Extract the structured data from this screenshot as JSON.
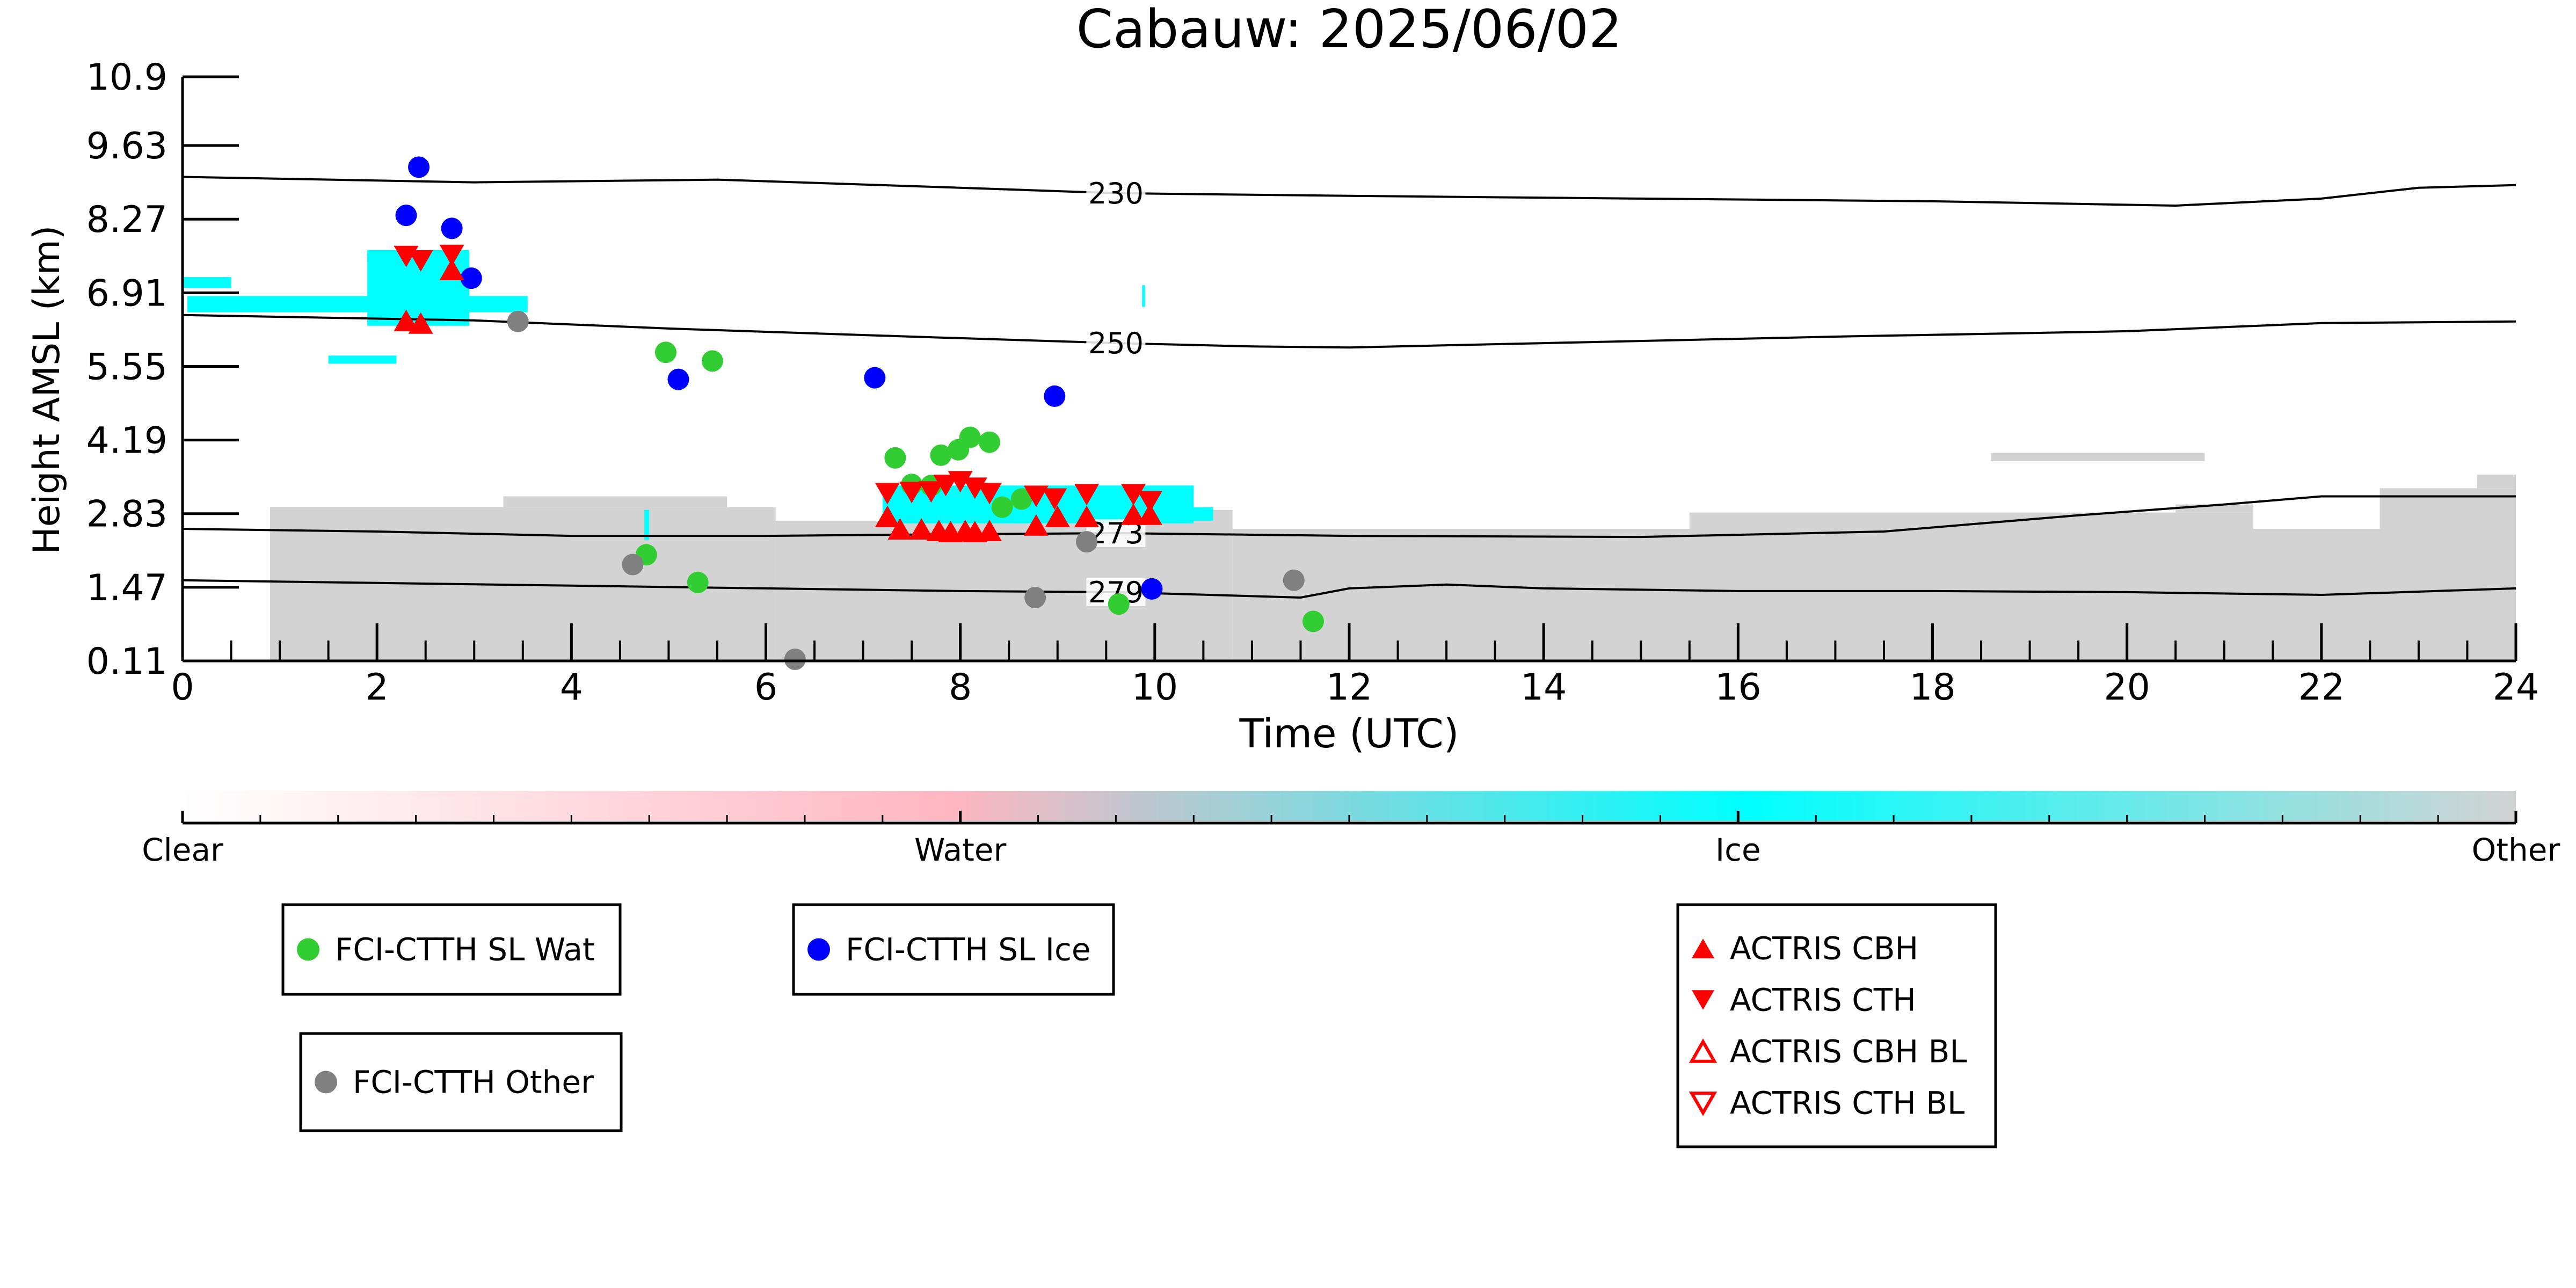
{
  "chart_data": {
    "type": "scatter",
    "title": "Cabauw: 2025/06/02",
    "xlabel": "Time (UTC)",
    "ylabel": "Height AMSL (km)",
    "xlim": [
      0,
      24
    ],
    "ylim": [
      0.11,
      10.9
    ],
    "x_ticks": [
      0,
      2,
      4,
      6,
      8,
      10,
      12,
      14,
      16,
      18,
      20,
      22,
      24
    ],
    "x_tick_labels": [
      "0",
      "2",
      "4",
      "6",
      "8",
      "10",
      "12",
      "14",
      "16",
      "18",
      "20",
      "22",
      "24"
    ],
    "y_ticks": [
      0.11,
      1.47,
      2.83,
      4.19,
      5.55,
      6.91,
      8.27,
      9.63,
      10.9
    ],
    "y_tick_labels": [
      "0.11",
      "1.47",
      "2.83",
      "4.19",
      "5.55",
      "6.91",
      "8.27",
      "9.63",
      "10.9"
    ],
    "grid": false,
    "colorbar": {
      "labels": [
        "Clear",
        "Water",
        "Ice",
        "Other"
      ],
      "stops": [
        {
          "pos": 0.0,
          "color": "#ffffff"
        },
        {
          "pos": 0.33,
          "color": "#ffb6c1"
        },
        {
          "pos": 0.42,
          "color": "#b8c8d0"
        },
        {
          "pos": 0.67,
          "color": "#00ffff"
        },
        {
          "pos": 1.0,
          "color": "#d3d3d3"
        }
      ]
    },
    "colors": {
      "water": "#32cd32",
      "ice": "#0000ff",
      "other": "#808080",
      "actris": "#ff0000",
      "cloud_ice": "#00ffff",
      "cloud_other": "#d3d3d3"
    },
    "legends": [
      {
        "entries": [
          {
            "label": "FCI-CTTH SL Wat",
            "marker": "circle",
            "color": "#32cd32"
          }
        ]
      },
      {
        "entries": [
          {
            "label": "FCI-CTTH SL Ice",
            "marker": "circle",
            "color": "#0000ff"
          }
        ]
      },
      {
        "entries": [
          {
            "label": "FCI-CTTH Other",
            "marker": "circle",
            "color": "#808080"
          }
        ]
      },
      {
        "entries": [
          {
            "label": "ACTRIS CBH",
            "marker": "triangle-up",
            "color": "#ff0000"
          },
          {
            "label": "ACTRIS CTH",
            "marker": "triangle-down",
            "color": "#ff0000"
          },
          {
            "label": "ACTRIS CBH BL",
            "marker": "triangle-up-open",
            "color": "#ff0000"
          },
          {
            "label": "ACTRIS CTH BL",
            "marker": "triangle-down-open",
            "color": "#ff0000"
          }
        ]
      }
    ],
    "isotherms": [
      {
        "label": "230",
        "label_x": 9.6,
        "points": [
          [
            0,
            9.05
          ],
          [
            3,
            8.95
          ],
          [
            5.5,
            9.0
          ],
          [
            8,
            8.85
          ],
          [
            9.6,
            8.75
          ],
          [
            12,
            8.7
          ],
          [
            15,
            8.65
          ],
          [
            18,
            8.6
          ],
          [
            20.5,
            8.52
          ],
          [
            22,
            8.65
          ],
          [
            23,
            8.85
          ],
          [
            24,
            8.9
          ]
        ]
      },
      {
        "label": "250",
        "label_x": 9.6,
        "points": [
          [
            0,
            6.5
          ],
          [
            3,
            6.4
          ],
          [
            5,
            6.25
          ],
          [
            7.5,
            6.1
          ],
          [
            9.6,
            5.98
          ],
          [
            11,
            5.92
          ],
          [
            12,
            5.9
          ],
          [
            14,
            5.98
          ],
          [
            17,
            6.1
          ],
          [
            20,
            6.2
          ],
          [
            22,
            6.35
          ],
          [
            24,
            6.38
          ]
        ]
      },
      {
        "label": "273",
        "label_x": 9.6,
        "points": [
          [
            0,
            2.55
          ],
          [
            2,
            2.5
          ],
          [
            4,
            2.42
          ],
          [
            6,
            2.42
          ],
          [
            8,
            2.45
          ],
          [
            9.6,
            2.47
          ],
          [
            12,
            2.42
          ],
          [
            15,
            2.4
          ],
          [
            17.5,
            2.5
          ],
          [
            19.5,
            2.8
          ],
          [
            21,
            3.0
          ],
          [
            22,
            3.15
          ],
          [
            24,
            3.15
          ]
        ]
      },
      {
        "label": "279",
        "label_x": 9.6,
        "points": [
          [
            0,
            1.6
          ],
          [
            2,
            1.55
          ],
          [
            4,
            1.5
          ],
          [
            6,
            1.45
          ],
          [
            8,
            1.4
          ],
          [
            9.6,
            1.38
          ],
          [
            11.5,
            1.28
          ],
          [
            12,
            1.45
          ],
          [
            13,
            1.52
          ],
          [
            14,
            1.45
          ],
          [
            16,
            1.4
          ],
          [
            18,
            1.4
          ],
          [
            20,
            1.38
          ],
          [
            22,
            1.33
          ],
          [
            24,
            1.45
          ]
        ]
      }
    ],
    "series": [
      {
        "name": "FCI-CTTH SL Wat",
        "marker": "circle",
        "color": "#32cd32",
        "points": [
          [
            4.97,
            5.81
          ],
          [
            5.45,
            5.65
          ],
          [
            7.33,
            3.86
          ],
          [
            7.5,
            3.37
          ],
          [
            7.7,
            3.35
          ],
          [
            7.8,
            3.91
          ],
          [
            7.98,
            4.01
          ],
          [
            8.1,
            4.24
          ],
          [
            8.3,
            4.15
          ],
          [
            8.43,
            2.95
          ],
          [
            8.63,
            3.1
          ],
          [
            4.77,
            2.07
          ],
          [
            5.3,
            1.56
          ],
          [
            9.63,
            1.16
          ],
          [
            11.63,
            0.84
          ]
        ]
      },
      {
        "name": "FCI-CTTH SL Ice",
        "marker": "circle",
        "color": "#0000ff",
        "points": [
          [
            2.43,
            9.23
          ],
          [
            2.3,
            8.34
          ],
          [
            2.77,
            8.1
          ],
          [
            2.97,
            7.18
          ],
          [
            5.1,
            5.31
          ],
          [
            7.12,
            5.34
          ],
          [
            8.97,
            5.0
          ],
          [
            9.97,
            1.44
          ]
        ]
      },
      {
        "name": "FCI-CTTH Other",
        "marker": "circle",
        "color": "#808080",
        "points": [
          [
            3.45,
            6.38
          ],
          [
            4.63,
            1.89
          ],
          [
            6.3,
            0.14
          ],
          [
            8.77,
            1.28
          ],
          [
            9.3,
            2.31
          ],
          [
            11.43,
            1.6
          ]
        ]
      },
      {
        "name": "ACTRIS CBH",
        "marker": "triangle-up",
        "color": "#ff0000",
        "points": [
          [
            2.3,
            6.4
          ],
          [
            2.45,
            6.35
          ],
          [
            2.77,
            7.34
          ],
          [
            7.25,
            2.78
          ],
          [
            7.38,
            2.55
          ],
          [
            7.6,
            2.55
          ],
          [
            7.78,
            2.52
          ],
          [
            7.9,
            2.5
          ],
          [
            8.05,
            2.52
          ],
          [
            8.15,
            2.5
          ],
          [
            8.3,
            2.52
          ],
          [
            8.78,
            2.62
          ],
          [
            9.0,
            2.78
          ],
          [
            9.3,
            2.78
          ],
          [
            9.78,
            2.82
          ],
          [
            9.95,
            2.82
          ]
        ]
      },
      {
        "name": "ACTRIS CTH",
        "marker": "triangle-down",
        "color": "#ff0000",
        "points": [
          [
            2.3,
            7.58
          ],
          [
            2.45,
            7.5
          ],
          [
            2.77,
            7.6
          ],
          [
            7.25,
            3.2
          ],
          [
            7.5,
            3.22
          ],
          [
            7.7,
            3.23
          ],
          [
            7.85,
            3.35
          ],
          [
            8.0,
            3.42
          ],
          [
            8.15,
            3.3
          ],
          [
            8.3,
            3.2
          ],
          [
            8.78,
            3.15
          ],
          [
            8.97,
            3.1
          ],
          [
            9.3,
            3.18
          ],
          [
            9.78,
            3.18
          ],
          [
            9.95,
            3.05
          ]
        ]
      }
    ]
  }
}
